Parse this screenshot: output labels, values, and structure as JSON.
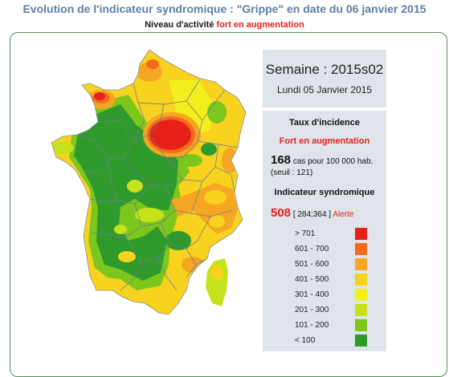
{
  "header": {
    "title": "Evolution de l'indicateur syndromique : \"Grippe\" en date du 06 janvier 2015",
    "activity_label": "Niveau d'activité",
    "activity_value": "fort en augmentation"
  },
  "week": {
    "title": "Semaine : 2015s02",
    "date": "Lundi 05 Janvier 2015"
  },
  "incidence": {
    "title": "Taux d'incidence",
    "level": "Fort en augmentation",
    "cases": "168",
    "cases_unit": "cas pour 100 000 hab.",
    "threshold": "(seuil : 121)"
  },
  "indicator": {
    "title": "Indicateur syndromique",
    "value": "508",
    "interval": "[ 284;364 ]",
    "status": "Alerte"
  },
  "legend": [
    {
      "label": "> 701",
      "color": "#e8201a"
    },
    {
      "label": "601 - 700",
      "color": "#f36c1b"
    },
    {
      "label": "501 - 600",
      "color": "#f5a623"
    },
    {
      "label": "401 - 500",
      "color": "#f7d21e"
    },
    {
      "label": "301 - 400",
      "color": "#f2ef1c"
    },
    {
      "label": "201 - 300",
      "color": "#c5e21c"
    },
    {
      "label": "101 - 200",
      "color": "#7cc61d"
    },
    {
      "label": "< 100",
      "color": "#2e9a2c"
    }
  ]
}
